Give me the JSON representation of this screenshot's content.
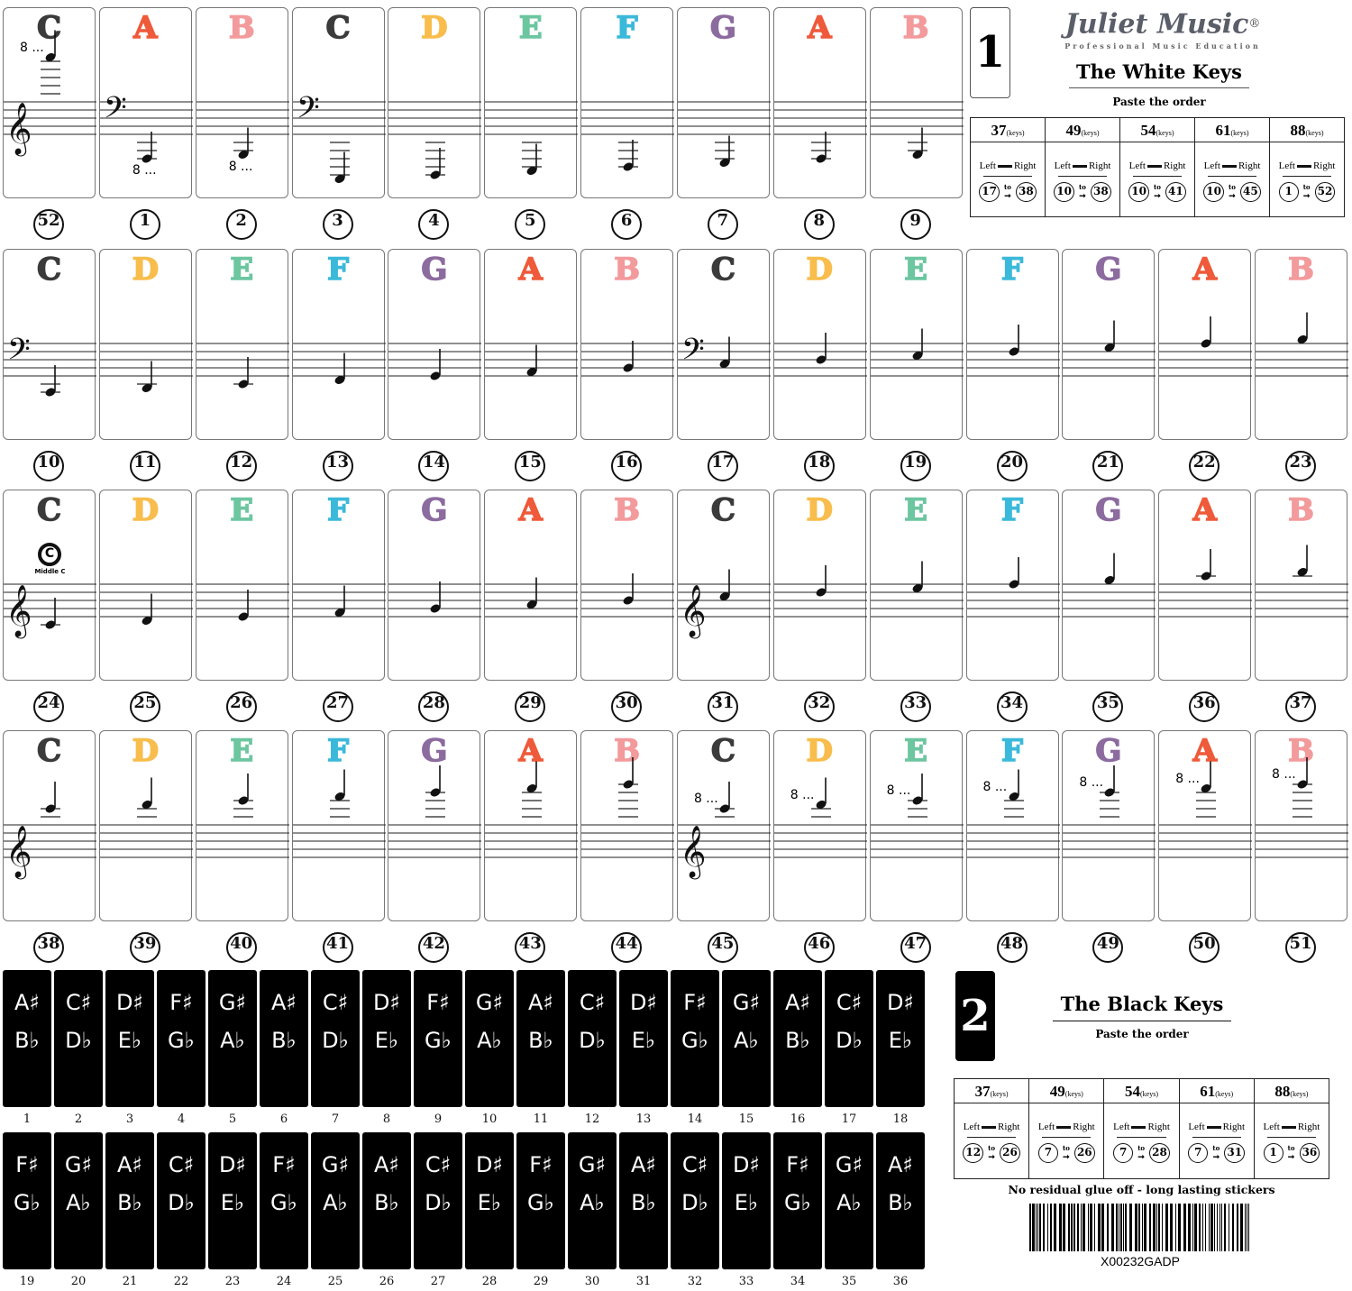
{
  "note_colors": {
    "C": "#3b3b3b",
    "D": "#f8bd4c",
    "E": "#6cc6a0",
    "F": "#3bb9da",
    "G": "#8c6b9f",
    "A": "#ee5a3a",
    "B": "#f39a9c"
  },
  "white_keys": [
    [
      {
        "number": "52",
        "note": "C",
        "ottava": "8 ..."
      },
      {
        "number": "1",
        "note": "A",
        "ottava": "8 ..."
      },
      {
        "number": "2",
        "note": "B",
        "ottava": "8 ..."
      },
      {
        "number": "3",
        "note": "C"
      },
      {
        "number": "4",
        "note": "D"
      },
      {
        "number": "5",
        "note": "E"
      },
      {
        "number": "6",
        "note": "F"
      },
      {
        "number": "7",
        "note": "G"
      },
      {
        "number": "8",
        "note": "A"
      },
      {
        "number": "9",
        "note": "B"
      }
    ],
    [
      {
        "number": "10",
        "note": "C"
      },
      {
        "number": "11",
        "note": "D"
      },
      {
        "number": "12",
        "note": "E"
      },
      {
        "number": "13",
        "note": "F"
      },
      {
        "number": "14",
        "note": "G"
      },
      {
        "number": "15",
        "note": "A"
      },
      {
        "number": "16",
        "note": "B"
      },
      {
        "number": "17",
        "note": "C"
      },
      {
        "number": "18",
        "note": "D"
      },
      {
        "number": "19",
        "note": "E"
      },
      {
        "number": "20",
        "note": "F"
      },
      {
        "number": "21",
        "note": "G"
      },
      {
        "number": "22",
        "note": "A"
      },
      {
        "number": "23",
        "note": "B"
      }
    ],
    [
      {
        "number": "24",
        "note": "C",
        "badge": "C",
        "badge_label": "Middle C"
      },
      {
        "number": "25",
        "note": "D"
      },
      {
        "number": "26",
        "note": "E"
      },
      {
        "number": "27",
        "note": "F"
      },
      {
        "number": "28",
        "note": "G"
      },
      {
        "number": "29",
        "note": "A"
      },
      {
        "number": "30",
        "note": "B"
      },
      {
        "number": "31",
        "note": "C"
      },
      {
        "number": "32",
        "note": "D"
      },
      {
        "number": "33",
        "note": "E"
      },
      {
        "number": "34",
        "note": "F"
      },
      {
        "number": "35",
        "note": "G"
      },
      {
        "number": "36",
        "note": "A"
      },
      {
        "number": "37",
        "note": "B"
      }
    ],
    [
      {
        "number": "38",
        "note": "C"
      },
      {
        "number": "39",
        "note": "D"
      },
      {
        "number": "40",
        "note": "E"
      },
      {
        "number": "41",
        "note": "F"
      },
      {
        "number": "42",
        "note": "G"
      },
      {
        "number": "43",
        "note": "A"
      },
      {
        "number": "44",
        "note": "B"
      },
      {
        "number": "45",
        "note": "C",
        "ottava": "8 ..."
      },
      {
        "number": "46",
        "note": "D",
        "ottava": "8 ..."
      },
      {
        "number": "47",
        "note": "E",
        "ottava": "8 ..."
      },
      {
        "number": "48",
        "note": "F",
        "ottava": "8 ..."
      },
      {
        "number": "49",
        "note": "G",
        "ottava": "8 ..."
      },
      {
        "number": "50",
        "note": "A",
        "ottava": "8 ..."
      },
      {
        "number": "51",
        "note": "B",
        "ottava": "8 ..."
      }
    ]
  ],
  "black_key_names": [
    [
      "A♯",
      "B♭"
    ],
    [
      "C♯",
      "D♭"
    ],
    [
      "D♯",
      "E♭"
    ],
    [
      "F♯",
      "G♭"
    ],
    [
      "G♯",
      "A♭"
    ]
  ],
  "black_key_count": 36,
  "white_panel": {
    "box_number": "1",
    "logo": "Juliet Music",
    "logo_mark": "®",
    "tagline": "Professional Music Education",
    "title": "The White Keys",
    "subtitle": "Paste the order",
    "columns": [
      {
        "keys": "37",
        "unit": "(keys)",
        "from": "17",
        "to": "38"
      },
      {
        "keys": "49",
        "unit": "(keys)",
        "from": "10",
        "to": "38"
      },
      {
        "keys": "54",
        "unit": "(keys)",
        "from": "10",
        "to": "41"
      },
      {
        "keys": "61",
        "unit": "(keys)",
        "from": "10",
        "to": "45"
      },
      {
        "keys": "88",
        "unit": "(keys)",
        "from": "1",
        "to": "52"
      }
    ]
  },
  "black_panel": {
    "box_number": "2",
    "title": "The Black Keys",
    "subtitle": "Paste the order",
    "columns": [
      {
        "keys": "37",
        "unit": "(keys)",
        "from": "12",
        "to": "26"
      },
      {
        "keys": "49",
        "unit": "(keys)",
        "from": "7",
        "to": "26"
      },
      {
        "keys": "54",
        "unit": "(keys)",
        "from": "7",
        "to": "28"
      },
      {
        "keys": "61",
        "unit": "(keys)",
        "from": "7",
        "to": "31"
      },
      {
        "keys": "88",
        "unit": "(keys)",
        "from": "1",
        "to": "36"
      }
    ],
    "slogan": "No residual glue off - long lasting stickers",
    "barcode": "X00232GADP"
  },
  "direction": {
    "left": "Left",
    "right": "Right",
    "to": "to"
  },
  "watermark": "Juliet Music"
}
